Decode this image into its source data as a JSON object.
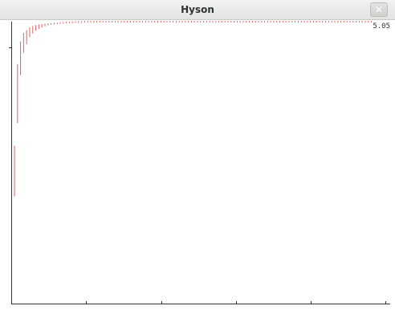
{
  "window": {
    "title": "Hyson",
    "close_glyph": "✕"
  },
  "chart_data": {
    "type": "bar",
    "title": "",
    "xlabel": "",
    "ylabel": "",
    "value_label": "5.05",
    "grid": false,
    "bar_color": "#e85d5d",
    "bars": [
      [
        0.38,
        0.56
      ],
      [
        0.64,
        0.85
      ],
      [
        0.81,
        0.93
      ],
      [
        0.89,
        0.96
      ],
      [
        0.92,
        0.97
      ],
      [
        0.945,
        0.98
      ],
      [
        0.958,
        0.985
      ],
      [
        0.968,
        0.988
      ],
      [
        0.975,
        0.99
      ],
      [
        0.98,
        0.992
      ],
      [
        0.984,
        0.993
      ],
      [
        0.987,
        0.994
      ],
      [
        0.989,
        0.995
      ],
      [
        0.99,
        0.996
      ],
      [
        0.991,
        0.996
      ],
      [
        0.992,
        0.997
      ],
      [
        0.993,
        0.997
      ],
      [
        0.994,
        0.997
      ],
      [
        0.995,
        0.998
      ],
      [
        0.995,
        0.998
      ],
      [
        0.996,
        0.998
      ],
      [
        0.996,
        0.998
      ],
      [
        0.996,
        0.998
      ],
      [
        0.997,
        0.998
      ],
      [
        0.997,
        0.998
      ],
      [
        0.997,
        0.998
      ],
      [
        0.997,
        0.998
      ],
      [
        0.997,
        0.998
      ],
      [
        0.997,
        0.998
      ],
      [
        0.997,
        0.998
      ],
      [
        0.997,
        0.998
      ],
      [
        0.997,
        0.998
      ],
      [
        0.997,
        0.998
      ],
      [
        0.997,
        0.998
      ],
      [
        0.997,
        0.998
      ],
      [
        0.997,
        0.998
      ],
      [
        0.997,
        0.998
      ],
      [
        0.997,
        0.998
      ],
      [
        0.997,
        0.998
      ],
      [
        0.997,
        0.998
      ],
      [
        0.997,
        0.998
      ],
      [
        0.997,
        0.998
      ],
      [
        0.997,
        0.998
      ],
      [
        0.997,
        0.998
      ],
      [
        0.997,
        0.998
      ],
      [
        0.997,
        0.998
      ],
      [
        0.997,
        0.998
      ],
      [
        0.997,
        0.998
      ],
      [
        0.997,
        0.998
      ],
      [
        0.997,
        0.998
      ],
      [
        0.997,
        0.998
      ],
      [
        0.997,
        0.998
      ],
      [
        0.997,
        0.998
      ],
      [
        0.997,
        0.998
      ],
      [
        0.997,
        0.998
      ],
      [
        0.997,
        0.998
      ],
      [
        0.997,
        0.998
      ],
      [
        0.997,
        0.998
      ],
      [
        0.997,
        0.998
      ],
      [
        0.997,
        0.998
      ],
      [
        0.997,
        0.998
      ],
      [
        0.997,
        0.998
      ],
      [
        0.997,
        0.998
      ],
      [
        0.997,
        0.998
      ],
      [
        0.997,
        0.998
      ],
      [
        0.997,
        0.998
      ],
      [
        0.997,
        0.998
      ],
      [
        0.997,
        0.998
      ],
      [
        0.997,
        0.998
      ],
      [
        0.997,
        0.998
      ],
      [
        0.997,
        0.998
      ],
      [
        0.997,
        0.998
      ],
      [
        0.997,
        0.998
      ],
      [
        0.997,
        0.998
      ],
      [
        0.997,
        0.998
      ],
      [
        0.997,
        0.998
      ],
      [
        0.997,
        0.998
      ],
      [
        0.997,
        0.998
      ],
      [
        0.997,
        0.998
      ],
      [
        0.997,
        0.998
      ],
      [
        0.997,
        0.998
      ],
      [
        0.997,
        0.998
      ],
      [
        0.997,
        0.998
      ],
      [
        0.997,
        0.998
      ],
      [
        0.997,
        0.998
      ],
      [
        0.997,
        0.998
      ],
      [
        0.997,
        0.998
      ],
      [
        0.997,
        0.998
      ],
      [
        0.997,
        0.998
      ],
      [
        0.997,
        0.998
      ],
      [
        0.997,
        0.998
      ],
      [
        0.997,
        0.998
      ],
      [
        0.997,
        0.998
      ],
      [
        0.997,
        0.998
      ],
      [
        0.997,
        0.998
      ],
      [
        0.997,
        0.998
      ],
      [
        0.997,
        0.998
      ],
      [
        0.997,
        0.998
      ],
      [
        0.997,
        0.998
      ],
      [
        0.997,
        0.998
      ],
      [
        0.997,
        0.998
      ],
      [
        0.997,
        0.998
      ],
      [
        0.997,
        0.998
      ],
      [
        0.997,
        0.998
      ],
      [
        0.997,
        0.998
      ],
      [
        0.997,
        0.998
      ],
      [
        0.997,
        0.998
      ],
      [
        0.997,
        0.998
      ],
      [
        0.997,
        0.998
      ],
      [
        0.997,
        0.998
      ],
      [
        0.997,
        0.998
      ],
      [
        0.997,
        0.998
      ],
      [
        0.997,
        0.998
      ],
      [
        0.997,
        0.998
      ],
      [
        0.997,
        0.998
      ],
      [
        0.997,
        0.998
      ],
      [
        0.997,
        0.998
      ],
      [
        0.997,
        0.998
      ],
      [
        0.997,
        0.998
      ],
      [
        0.997,
        0.998
      ]
    ]
  }
}
